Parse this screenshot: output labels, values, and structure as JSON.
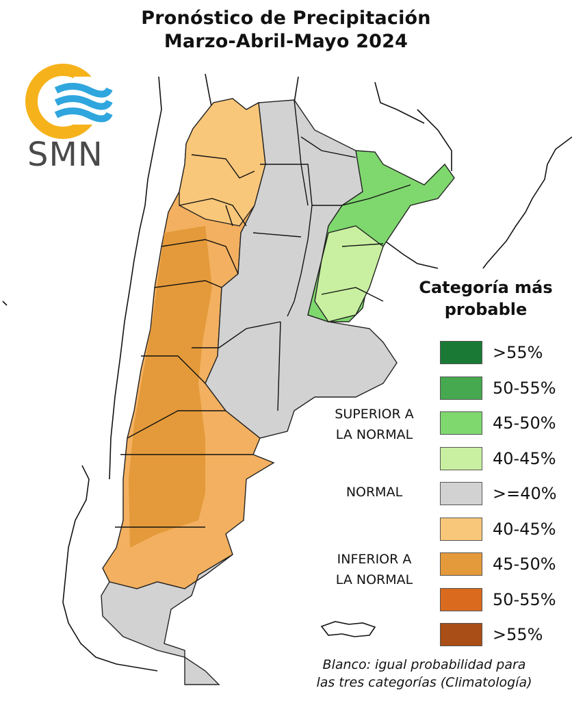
{
  "title": {
    "line1": "Pronóstico de Precipitación",
    "line2": "Marzo-Abril-Mayo 2024"
  },
  "logo": {
    "text": "SMN",
    "icon": "smn-logo-icon"
  },
  "legend": {
    "title_line1": "Categoría más",
    "title_line2": "probable",
    "items": [
      {
        "label": ">55%",
        "color": "#1a7a35"
      },
      {
        "label": "50-55%",
        "color": "#46a84f"
      },
      {
        "label": "45-50%",
        "color": "#7fd86e"
      },
      {
        "label": "40-45%",
        "color": "#c8f0a0"
      },
      {
        "label": ">=40%",
        "color": "#d2d2d2"
      },
      {
        "label": "40-45%",
        "color": "#f9c77a"
      },
      {
        "label": "45-50%",
        "color": "#e49a3a"
      },
      {
        "label": "50-55%",
        "color": "#d96a1e"
      },
      {
        "label": ">55%",
        "color": "#a84e16"
      }
    ],
    "categories": {
      "above_line1": "SUPERIOR A",
      "above_line2": "LA NORMAL",
      "normal": "NORMAL",
      "below_line1": "INFERIOR A",
      "below_line2": "LA NORMAL"
    }
  },
  "note": {
    "line1": "Blanco: igual probabilidad para",
    "line2": "las tres categorías (Climatología)"
  }
}
